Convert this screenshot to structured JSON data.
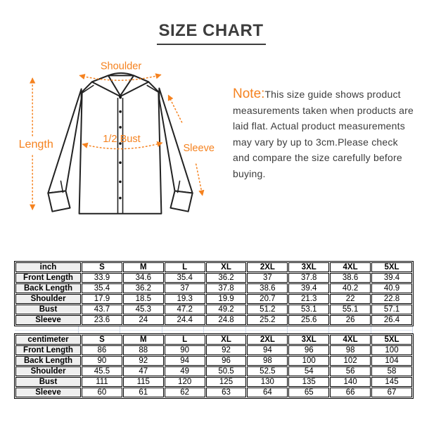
{
  "title": "SIZE CHART",
  "accent_color": "#f5821f",
  "diagram": {
    "shoulder_label": "Shoulder",
    "length_label": "Length",
    "bust_label": "1/2 Bust",
    "sleeve_label": "Sleeve"
  },
  "note": {
    "prefix": "Note:",
    "body": "This size guide shows product measurements taken when products are laid flat. Actual product measurements may vary by up to 3cm.Please check and compare the size carefully before buying."
  },
  "tables": [
    {
      "unit_label": "inch",
      "sizes": [
        "S",
        "M",
        "L",
        "XL",
        "2XL",
        "3XL",
        "4XL",
        "5XL"
      ],
      "rows": [
        {
          "label": "Front Length",
          "values": [
            "33.9",
            "34.6",
            "35.4",
            "36.2",
            "37",
            "37.8",
            "38.6",
            "39.4"
          ]
        },
        {
          "label": "Back Length",
          "values": [
            "35.4",
            "36.2",
            "37",
            "37.8",
            "38.6",
            "39.4",
            "40.2",
            "40.9"
          ]
        },
        {
          "label": "Shoulder",
          "values": [
            "17.9",
            "18.5",
            "19.3",
            "19.9",
            "20.7",
            "21.3",
            "22",
            "22.8"
          ]
        },
        {
          "label": "Bust",
          "values": [
            "43.7",
            "45.3",
            "47.2",
            "49.2",
            "51.2",
            "53.1",
            "55.1",
            "57.1"
          ]
        },
        {
          "label": "Sleeve",
          "values": [
            "23.6",
            "24",
            "24.4",
            "24.8",
            "25.2",
            "25.6",
            "26",
            "26.4"
          ]
        }
      ]
    },
    {
      "unit_label": "centimeter",
      "sizes": [
        "S",
        "M",
        "L",
        "XL",
        "2XL",
        "3XL",
        "4XL",
        "5XL"
      ],
      "rows": [
        {
          "label": "Front Length",
          "values": [
            "86",
            "88",
            "90",
            "92",
            "94",
            "96",
            "98",
            "100"
          ]
        },
        {
          "label": "Back Length",
          "values": [
            "90",
            "92",
            "94",
            "96",
            "98",
            "100",
            "102",
            "104"
          ]
        },
        {
          "label": "Shoulder",
          "values": [
            "45.5",
            "47",
            "49",
            "50.5",
            "52.5",
            "54",
            "56",
            "58"
          ]
        },
        {
          "label": "Bust",
          "values": [
            "111",
            "115",
            "120",
            "125",
            "130",
            "135",
            "140",
            "145"
          ]
        },
        {
          "label": "Sleeve",
          "values": [
            "60",
            "61",
            "62",
            "63",
            "64",
            "65",
            "66",
            "67"
          ]
        }
      ]
    }
  ]
}
